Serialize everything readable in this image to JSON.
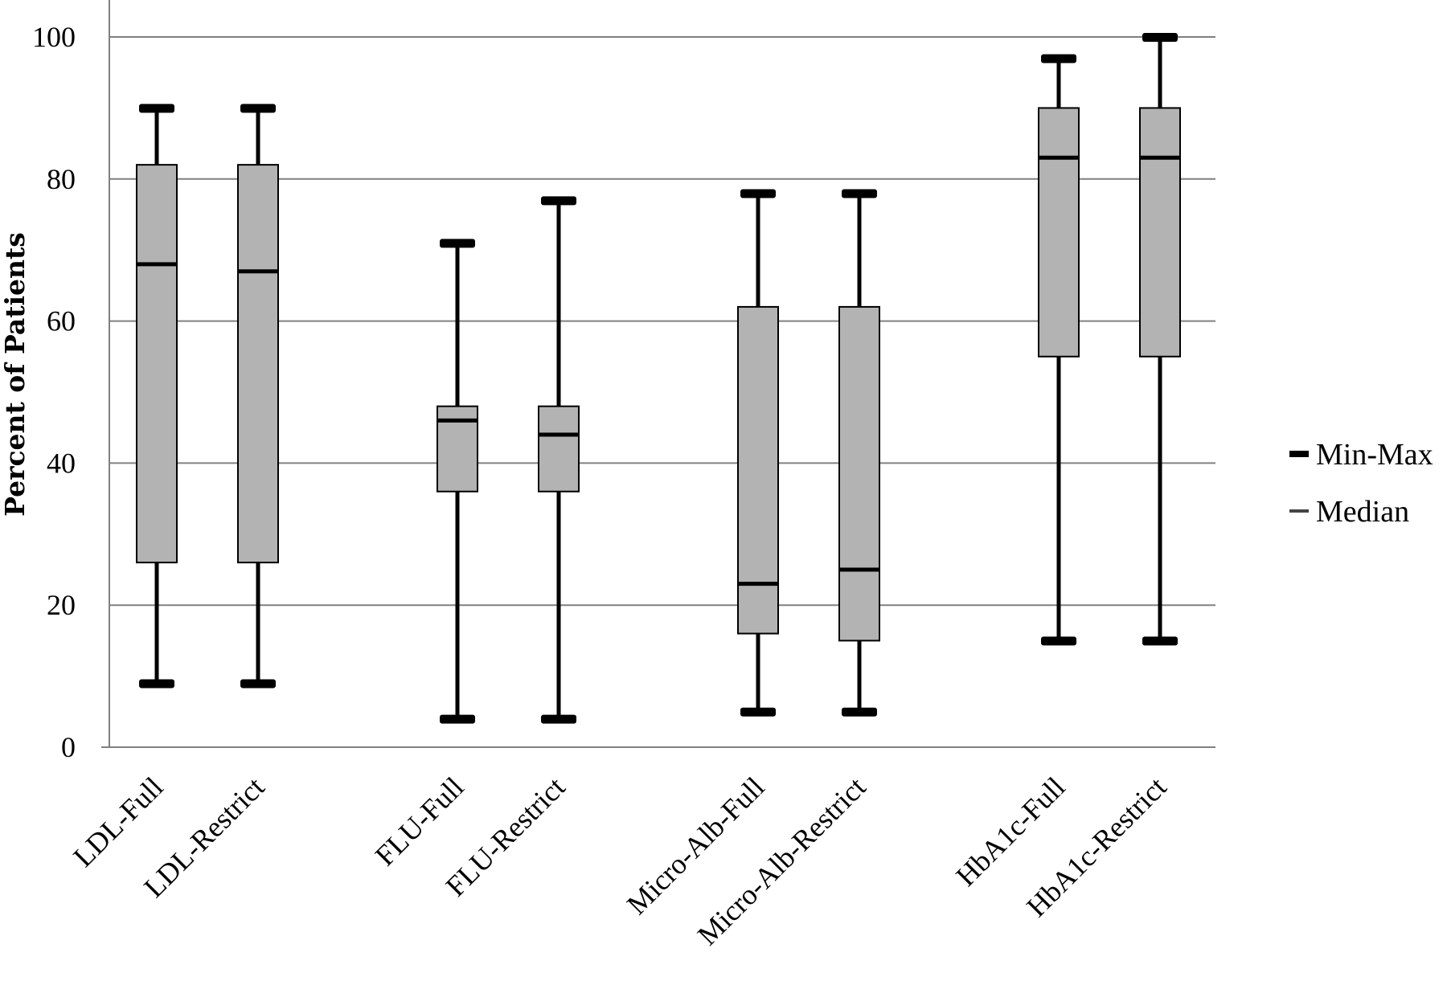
{
  "chart_data": {
    "type": "boxplot",
    "ylabel": "Percent of Patients",
    "xlabel": "",
    "ylim": [
      0,
      100
    ],
    "yticks": [
      0,
      20,
      40,
      60,
      80,
      100
    ],
    "ytick_labels": [
      "0",
      "20",
      "40",
      "60",
      "80",
      "100"
    ],
    "grid": "horizontal",
    "legend_position": "right",
    "legend": [
      {
        "label": "Min-Max",
        "marker": "thick-bar"
      },
      {
        "label": "Median",
        "marker": "thin-bar"
      }
    ],
    "colors": {
      "box_fill": "#b3b3b3",
      "line": "#000000",
      "grid": "#808080"
    },
    "categories": [
      {
        "label": "LDL-Full",
        "min": 9,
        "q1": 26,
        "median": 68,
        "q3": 82,
        "max": 90,
        "group": 0
      },
      {
        "label": "LDL-Restrict",
        "min": 9,
        "q1": 26,
        "median": 67,
        "q3": 82,
        "max": 90,
        "group": 0
      },
      {
        "label": "FLU-Full",
        "min": 4,
        "q1": 36,
        "median": 46,
        "q3": 48,
        "max": 71,
        "group": 1
      },
      {
        "label": "FLU-Restrict",
        "min": 4,
        "q1": 36,
        "median": 44,
        "q3": 48,
        "max": 77,
        "group": 1
      },
      {
        "label": "Micro-Alb-Full",
        "min": 5,
        "q1": 16,
        "median": 23,
        "q3": 62,
        "max": 78,
        "group": 2
      },
      {
        "label": "Micro-Alb-Restrict",
        "min": 5,
        "q1": 15,
        "median": 25,
        "q3": 62,
        "max": 78,
        "group": 2
      },
      {
        "label": "HbA1c-Full",
        "min": 15,
        "q1": 55,
        "median": 83,
        "q3": 90,
        "max": 97,
        "group": 3
      },
      {
        "label": "HbA1c-Restrict",
        "min": 15,
        "q1": 55,
        "median": 83,
        "q3": 90,
        "max": 100,
        "group": 3
      }
    ]
  }
}
